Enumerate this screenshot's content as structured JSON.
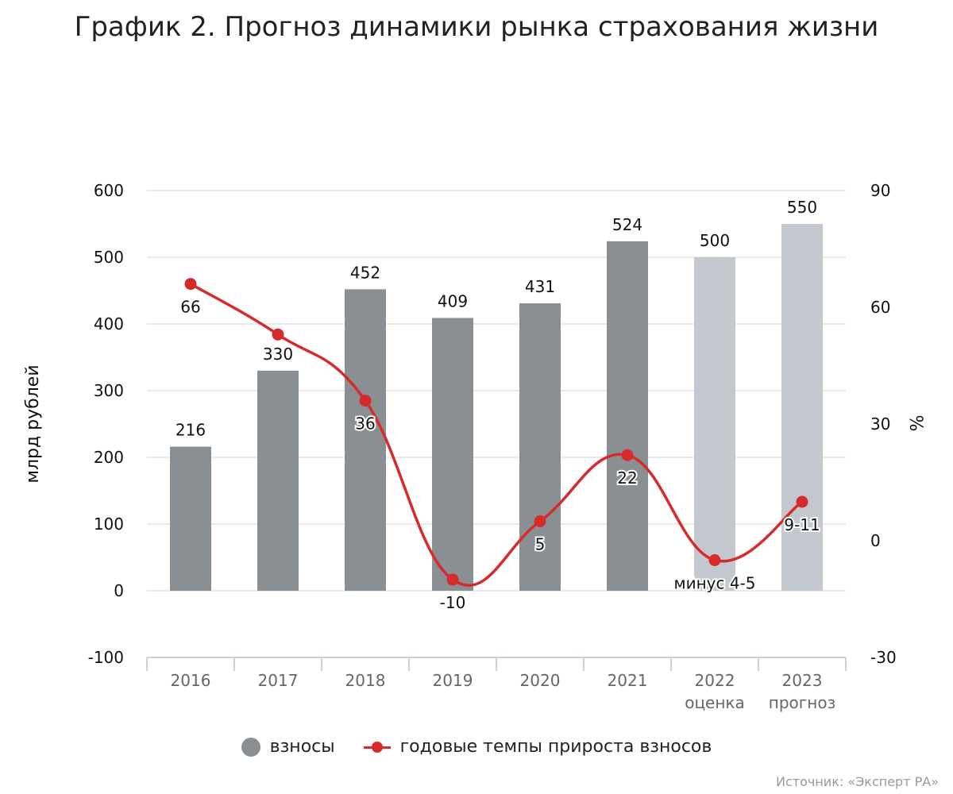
{
  "chart_data": {
    "type": "bar",
    "title": "График 2. Прогноз динамики рынка страхования жизни",
    "ylabel": "млрд рублей",
    "y2label": "%",
    "ylim": [
      -100,
      600
    ],
    "y2lim": [
      -30,
      90
    ],
    "yticks": [
      "600",
      "500",
      "400",
      "300",
      "200",
      "100",
      "0",
      "-100"
    ],
    "y2ticks": [
      "90",
      "60",
      "30",
      "0",
      "-30"
    ],
    "categories": [
      "2016",
      "2017",
      "2018",
      "2019",
      "2020",
      "2021",
      "2022",
      "2023"
    ],
    "sublabels": [
      "",
      "",
      "",
      "",
      "",
      "",
      "оценка",
      "прогноз"
    ],
    "series": [
      {
        "name": "взносы",
        "kind": "bar",
        "values": [
          216,
          330,
          452,
          409,
          431,
          524,
          500,
          550
        ],
        "labels": [
          "216",
          "330",
          "452",
          "409",
          "431",
          "524",
          "500",
          "550"
        ],
        "colors": [
          "#8a8f93",
          "#8a8f93",
          "#8a8f93",
          "#8a8f93",
          "#8a8f93",
          "#8a8f93",
          "#c2c8cd",
          "#c2c8cd"
        ]
      },
      {
        "name": "годовые темпы прироста взносов",
        "kind": "line",
        "axis": "right",
        "values": [
          66,
          53,
          36,
          -10,
          5,
          22,
          -5,
          10
        ],
        "labels": [
          "66",
          "",
          "36",
          "-10",
          "5",
          "22",
          "минус 4-5",
          "9-11"
        ],
        "color": "#d52b2b"
      }
    ],
    "legend": "bottom-center",
    "source": "Источник: «Эксперт РА»"
  }
}
